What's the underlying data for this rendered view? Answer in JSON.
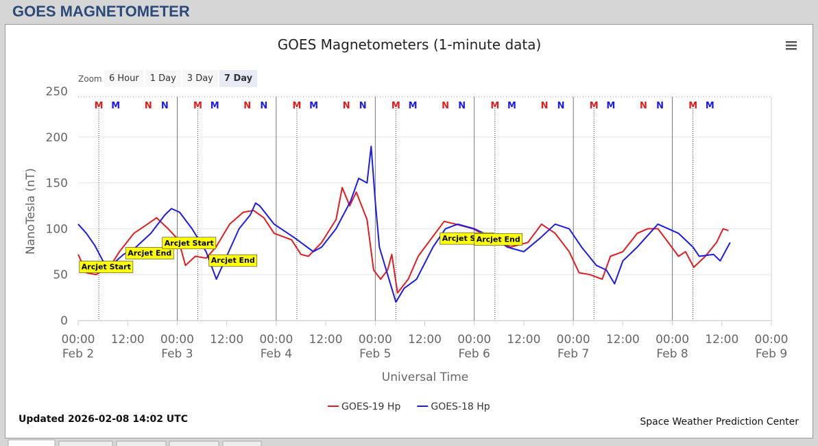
{
  "header": {
    "title": "GOES MAGNETOMETER"
  },
  "controls": {
    "zoom_label": "Zoom",
    "buttons": [
      "6 Hour",
      "1 Day",
      "3 Day",
      "7 Day"
    ],
    "selected": 3
  },
  "chart_data": {
    "type": "line",
    "title": "GOES Magnetometers (1-minute data)",
    "x_label": "Universal Time",
    "y_label": "NanoTesla (nT)",
    "xlim": [
      0,
      168
    ],
    "ylim": [
      0,
      250
    ],
    "yticks": [
      0,
      50,
      100,
      150,
      200,
      250
    ],
    "xticks": [
      {
        "value": 0,
        "label": "00:00",
        "date": "Feb 2"
      },
      {
        "value": 12,
        "label": "12:00"
      },
      {
        "value": 24,
        "label": "00:00",
        "date": "Feb 3"
      },
      {
        "value": 36,
        "label": "12:00"
      },
      {
        "value": 48,
        "label": "00:00",
        "date": "Feb 4"
      },
      {
        "value": 60,
        "label": "12:00"
      },
      {
        "value": 72,
        "label": "00:00",
        "date": "Feb 5"
      },
      {
        "value": 84,
        "label": "12:00"
      },
      {
        "value": 96,
        "label": "00:00",
        "date": "Feb 6"
      },
      {
        "value": 108,
        "label": "12:00"
      },
      {
        "value": 120,
        "label": "00:00",
        "date": "Feb 7"
      },
      {
        "value": 132,
        "label": "12:00"
      },
      {
        "value": 144,
        "label": "00:00",
        "date": "Feb 8"
      },
      {
        "value": 156,
        "label": "12:00"
      },
      {
        "value": 168,
        "label": "00:00",
        "date": "Feb 9"
      }
    ],
    "grid": true,
    "series": [
      {
        "name": "GOES-19 Hp",
        "color": "#e41a1c",
        "x": [
          0,
          2,
          4.3,
          7.6,
          10,
          13.5,
          16.8,
          19,
          21.8,
          24.3,
          26,
          28.4,
          31,
          33.4,
          36.7,
          40,
          42.5,
          45,
          47.5,
          51.7,
          54,
          55.8,
          59,
          62.5,
          64,
          65.8,
          67.4,
          70,
          71.6,
          73.3,
          75,
          76,
          77.4,
          80,
          82.4,
          85.7,
          88.7,
          91.5,
          95.7,
          100.7,
          104.8,
          109,
          112.3,
          115.6,
          119,
          121.4,
          124,
          127,
          129,
          132,
          135.5,
          138,
          140.5,
          143,
          145.5,
          147.2,
          149.2,
          152,
          154.7,
          156.3,
          157.6
        ],
        "values": [
          72,
          52,
          50,
          58,
          75,
          95,
          105,
          112,
          100,
          88,
          60,
          70,
          68,
          80,
          105,
          118,
          120,
          112,
          95,
          88,
          72,
          70,
          85,
          110,
          145,
          125,
          140,
          110,
          55,
          45,
          55,
          72,
          30,
          45,
          70,
          90,
          108,
          105,
          100,
          88,
          80,
          85,
          105,
          95,
          75,
          52,
          50,
          45,
          70,
          75,
          95,
          100,
          100,
          85,
          70,
          75,
          58,
          70,
          85,
          100,
          98
        ]
      },
      {
        "name": "GOES-18 Hp",
        "color": "#1a1aef",
        "x": [
          0,
          2,
          4,
          6,
          8,
          11,
          14,
          17.6,
          21,
          22.6,
          24.6,
          27.6,
          31,
          33.5,
          36,
          39,
          41.7,
          43,
          44,
          47.5,
          52.5,
          57,
          59,
          62.5,
          66,
          68,
          70,
          71,
          72,
          73,
          75,
          77,
          79,
          82,
          86,
          89,
          92,
          96,
          100.7,
          104,
          108,
          112,
          115.6,
          119,
          122,
          125.6,
          128,
          130,
          132,
          135.5,
          140.5,
          143,
          145.5,
          149,
          150.5,
          154,
          155.6,
          158
        ],
        "values": [
          105,
          95,
          82,
          65,
          60,
          72,
          80,
          95,
          115,
          122,
          118,
          100,
          75,
          45,
          70,
          100,
          115,
          128,
          125,
          105,
          90,
          75,
          80,
          100,
          130,
          155,
          150,
          190,
          130,
          80,
          50,
          20,
          35,
          45,
          80,
          100,
          105,
          100,
          90,
          80,
          75,
          90,
          105,
          100,
          80,
          60,
          55,
          40,
          65,
          80,
          105,
          100,
          95,
          80,
          70,
          72,
          65,
          85
        ]
      }
    ],
    "legend": "bottom",
    "markers": [
      {
        "label": "M",
        "color": "#e41a1c",
        "dotted_line": true,
        "x": [
          5,
          29,
          53,
          77,
          101,
          125,
          149
        ]
      },
      {
        "label": "M",
        "color": "#1a1aef",
        "x": [
          9.1,
          33.1,
          57.1,
          81.1,
          105.1,
          129.1,
          153.1
        ]
      },
      {
        "label": "N",
        "color": "#e41a1c",
        "x": [
          17,
          41,
          65,
          89,
          113,
          137
        ]
      },
      {
        "label": "N",
        "color": "#1a1aef",
        "x": [
          21,
          45,
          69,
          93,
          117,
          141
        ]
      }
    ],
    "annotations": [
      {
        "text": "Arcjet Start",
        "x": 0.3,
        "y": 52
      },
      {
        "text": "Arcjet End",
        "x": 11.5,
        "y": 67
      },
      {
        "text": "Arcjet Start",
        "x": 20.4,
        "y": 78
      },
      {
        "text": "Arcjet End",
        "x": 31.7,
        "y": 59
      },
      {
        "text": "Arcjet Start",
        "x": 87.7,
        "y": 83
      },
      {
        "text": "Arcjet End",
        "x": 96,
        "y": 82
      }
    ],
    "updated": "Updated 2026-02-08 14:02 UTC",
    "credit": "Space Weather Prediction Center"
  }
}
